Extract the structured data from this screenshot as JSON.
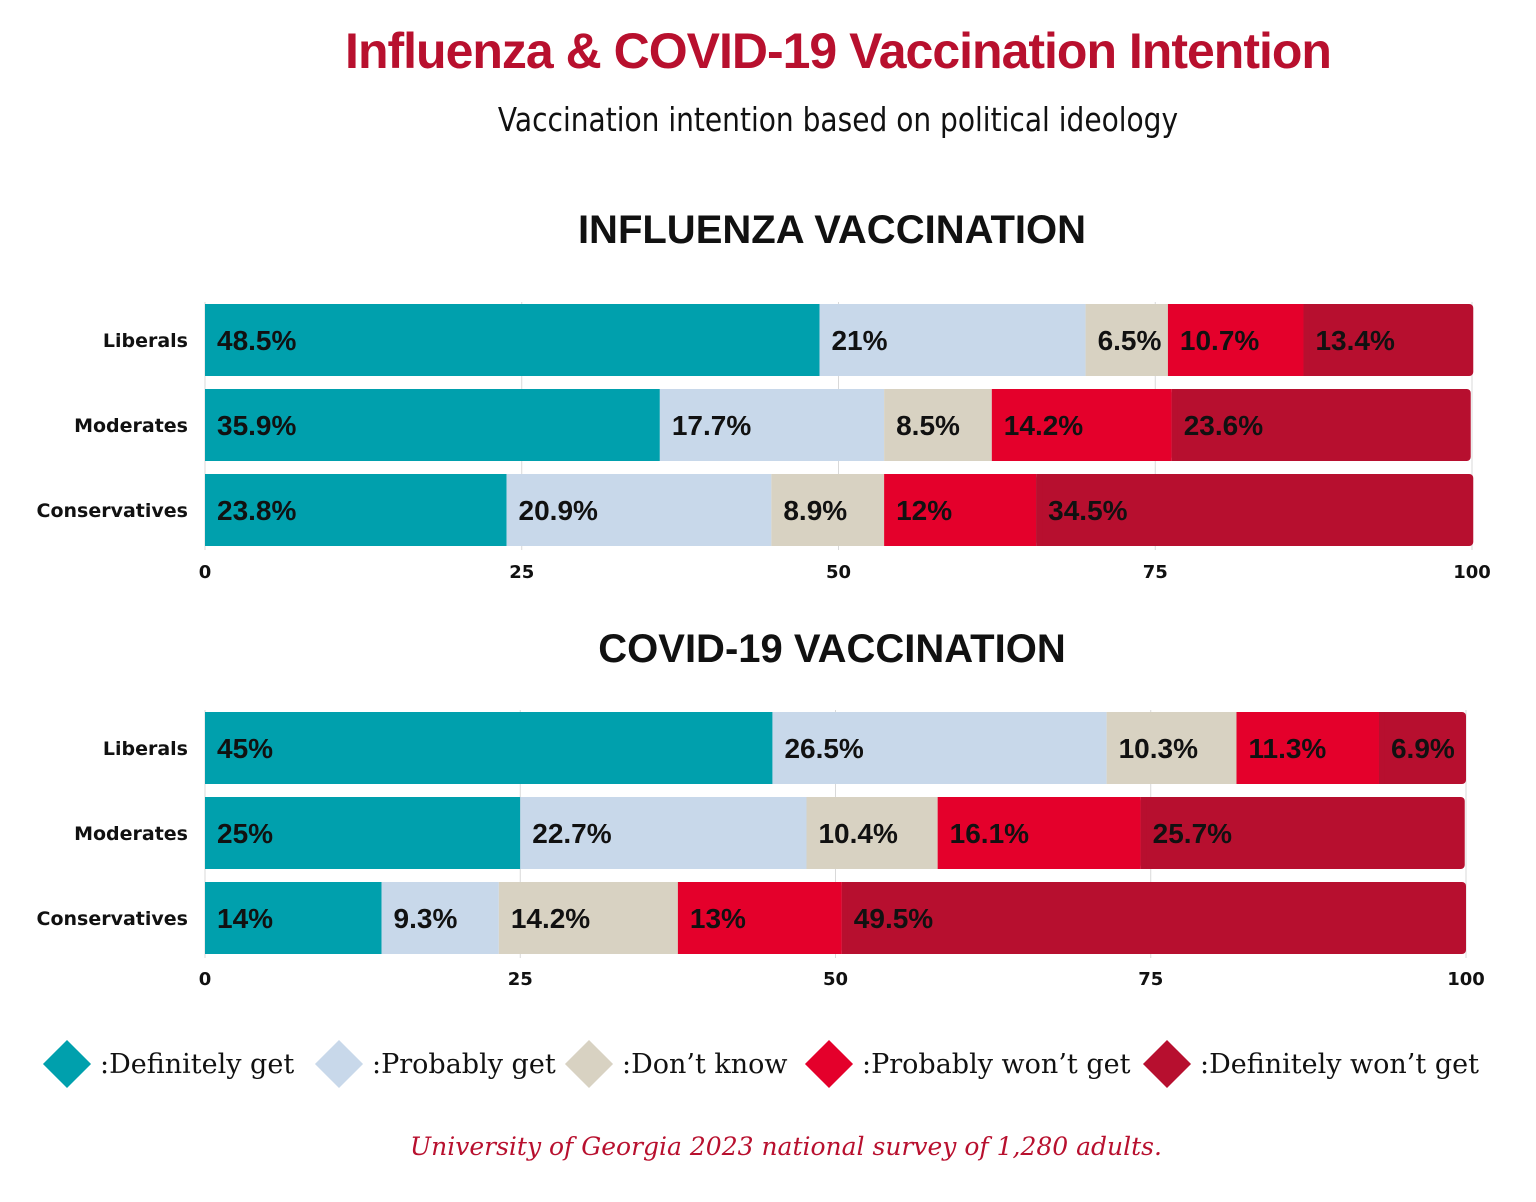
{
  "title": "Influenza & COVID-19 Vaccination Intention",
  "subtitle": "Vaccination intention based on political ideology",
  "colors": {
    "title": "#b8102e",
    "definitely_get": "#00a0ad",
    "probably_get": "#c8d8ea",
    "dont_know": "#d8d2c2",
    "probably_wont_get": "#e4002b",
    "definitely_wont_get": "#b70f2f"
  },
  "legend": [
    {
      "label": ":Definitely get",
      "color": "#00a0ad"
    },
    {
      "label": ":Probably get",
      "color": "#c8d8ea"
    },
    {
      "label": ":Don’t know",
      "color": "#d8d2c2"
    },
    {
      "label": ":Probably won’t get",
      "color": "#e4002b"
    },
    {
      "label": ":Definitely won’t get",
      "color": "#b70f2f"
    }
  ],
  "source": "University of Georgia 2023 national survey of 1,280 adults.",
  "chart_data": [
    {
      "type": "bar",
      "orientation": "horizontal",
      "stacked": true,
      "title": "INFLUENZA VACCINATION",
      "categories": [
        "Liberals",
        "Moderates",
        "Conservatives"
      ],
      "xlim": [
        0,
        100
      ],
      "xticks": [
        0,
        25,
        50,
        75,
        100
      ],
      "grid": true,
      "series": [
        {
          "name": ":Definitely get",
          "values": [
            48.5,
            35.9,
            23.8
          ],
          "labels": [
            "48.5%",
            "35.9%",
            "23.8%"
          ]
        },
        {
          "name": ":Probably get",
          "values": [
            21,
            17.7,
            20.9
          ],
          "labels": [
            "21%",
            "17.7%",
            "20.9%"
          ]
        },
        {
          "name": ":Don’t know",
          "values": [
            6.5,
            8.5,
            8.9
          ],
          "labels": [
            "6.5%",
            "8.5%",
            "8.9%"
          ]
        },
        {
          "name": ":Probably won’t get",
          "values": [
            10.7,
            14.2,
            12
          ],
          "labels": [
            "10.7%",
            "14.2%",
            "12%"
          ]
        },
        {
          "name": ":Definitely won’t get",
          "values": [
            13.4,
            23.6,
            34.5
          ],
          "labels": [
            "13.4%",
            "23.6%",
            "34.5%"
          ]
        }
      ]
    },
    {
      "type": "bar",
      "orientation": "horizontal",
      "stacked": true,
      "title": "COVID-19 VACCINATION",
      "categories": [
        "Liberals",
        "Moderates",
        "Conservatives"
      ],
      "xlim": [
        0,
        100
      ],
      "xticks": [
        0,
        25,
        50,
        75,
        100
      ],
      "grid": true,
      "series": [
        {
          "name": ":Definitely get",
          "values": [
            45,
            25,
            14
          ],
          "labels": [
            "45%",
            "25%",
            "14%"
          ]
        },
        {
          "name": ":Probably get",
          "values": [
            26.5,
            22.7,
            9.3
          ],
          "labels": [
            "26.5%",
            "22.7%",
            "9.3%"
          ]
        },
        {
          "name": ":Don’t know",
          "values": [
            10.3,
            10.4,
            14.2
          ],
          "labels": [
            "10.3%",
            "10.4%",
            "14.2%"
          ]
        },
        {
          "name": ":Probably won’t get",
          "values": [
            11.3,
            16.1,
            13
          ],
          "labels": [
            "11.3%",
            "16.1%",
            "13%"
          ]
        },
        {
          "name": ":Definitely won’t get",
          "values": [
            6.9,
            25.7,
            49.5
          ],
          "labels": [
            "6.9%",
            "25.7%",
            "49.5%"
          ]
        }
      ]
    }
  ]
}
